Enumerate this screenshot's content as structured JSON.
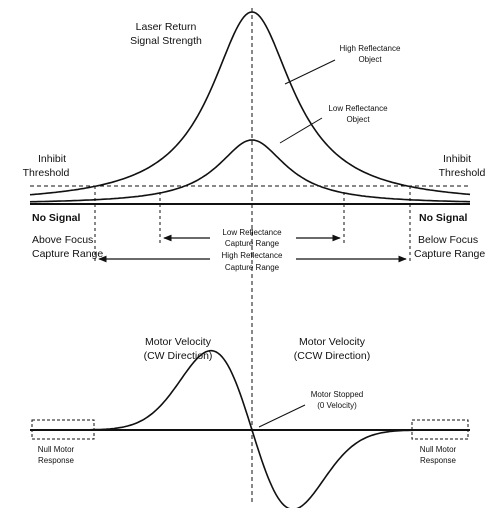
{
  "figure": {
    "top_labels": {
      "laser_return_line1": "Laser Return",
      "laser_return_line2": "Signal Strength",
      "high_reflectance_line1": "High Reflectance",
      "high_reflectance_line2": "Object",
      "low_reflectance_line1": "Low Reflectance",
      "low_reflectance_line2": "Object",
      "inhibit_left_line1": "Inhibit",
      "inhibit_left_line2": "Threshold",
      "inhibit_right_line1": "Inhibit",
      "inhibit_right_line2": "Threshold",
      "no_signal_left": "No Signal",
      "no_signal_right": "No Signal",
      "above_focus_line1": "Above Focus",
      "above_focus_line2": "Capture Range",
      "below_focus_line1": "Below  Focus",
      "below_focus_line2": "Capture Range",
      "low_capture_line1": "Low Reflectance",
      "low_capture_line2": "Capture Range",
      "high_capture_line1": "High Reflectance",
      "high_capture_line2": "Capture Range"
    },
    "bottom_labels": {
      "motor_cw_line1": "Motor Velocity",
      "motor_cw_line2": "(CW Direction)",
      "motor_ccw_line1": "Motor Velocity",
      "motor_ccw_line2": "(CCW Direction)",
      "motor_stopped_line1": "Motor Stopped",
      "motor_stopped_line2": "(0 Velocity)",
      "null_left_line1": "Null Motor",
      "null_left_line2": "Response",
      "null_right_line1": "Null Motor",
      "null_right_line2": "Response"
    },
    "colors": {
      "ink": "#111111",
      "background": "#ffffff"
    }
  }
}
